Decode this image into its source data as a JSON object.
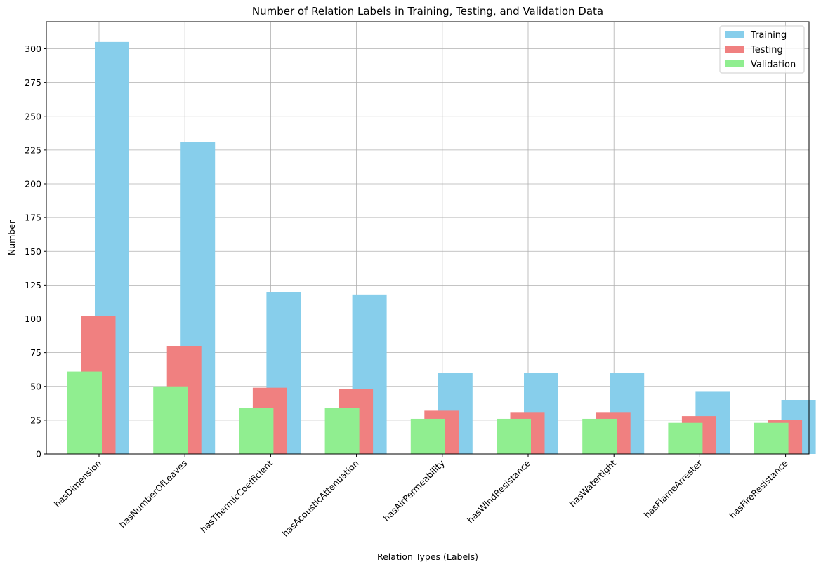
{
  "chart_data": {
    "type": "bar",
    "title": "Number of Relation Labels in Training, Testing, and Validation Data",
    "xlabel": "Relation Types (Labels)",
    "ylabel": "Number",
    "ylim": [
      0,
      320
    ],
    "yticks": [
      0,
      25,
      50,
      75,
      100,
      125,
      150,
      175,
      200,
      225,
      250,
      275,
      300
    ],
    "grid": true,
    "legend_position": "top-right",
    "categories": [
      "hasDimension",
      "hasNumberOfLeaves",
      "hasThermicCoefficient",
      "hasAcousticAttenuation",
      "hasAirPermeability",
      "hasWindResistance",
      "hasWatertight",
      "hasFlameArrester",
      "hasFireResistance"
    ],
    "series": [
      {
        "name": "Training",
        "color": "#87CEEB",
        "values": [
          305,
          231,
          120,
          118,
          60,
          60,
          60,
          46,
          40
        ]
      },
      {
        "name": "Testing",
        "color": "#F08080",
        "values": [
          102,
          80,
          49,
          48,
          32,
          31,
          31,
          28,
          25
        ]
      },
      {
        "name": "Validation",
        "color": "#90EE90",
        "values": [
          61,
          50,
          34,
          34,
          26,
          26,
          26,
          23,
          23
        ]
      }
    ]
  }
}
